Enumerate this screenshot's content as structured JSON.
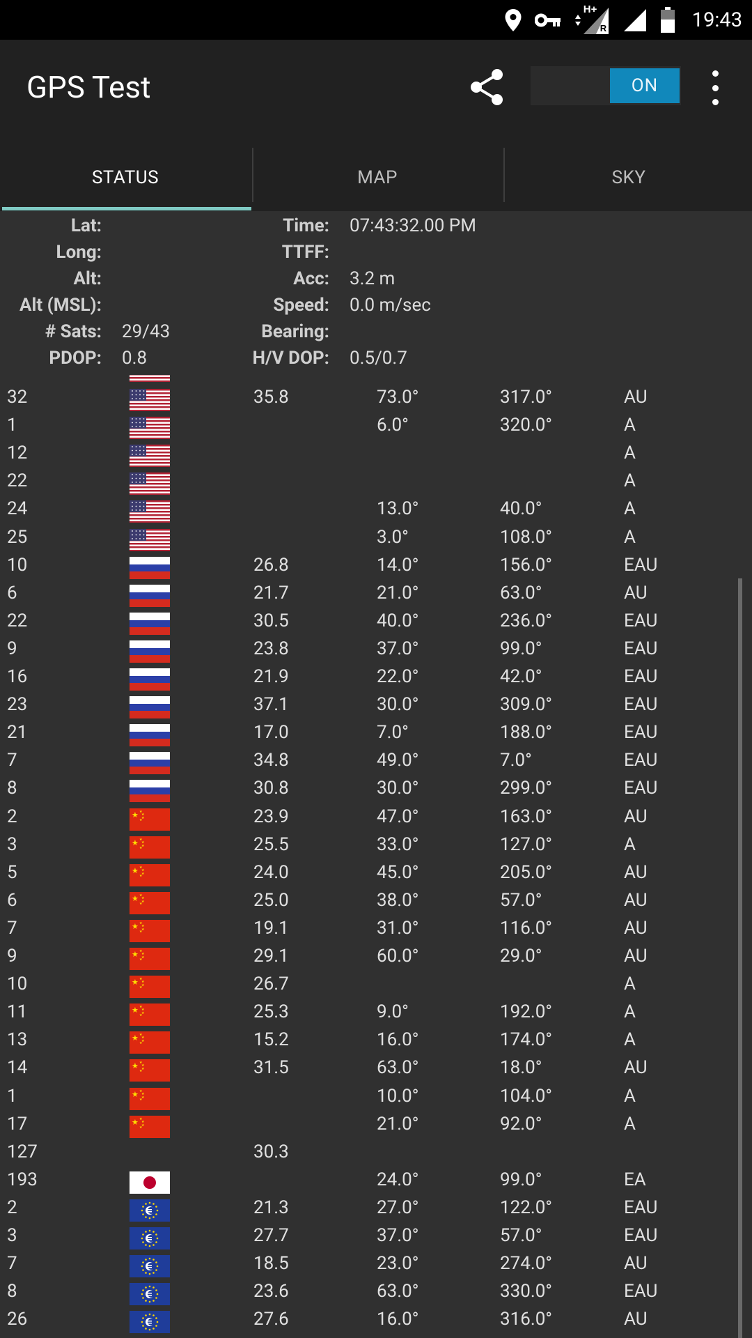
{
  "status_bar": {
    "time": "19:43",
    "network": "H+",
    "roaming": "R"
  },
  "app": {
    "title": "GPS Test",
    "toggle_label": "ON"
  },
  "tabs": [
    {
      "label": "STATUS",
      "active": true
    },
    {
      "label": "MAP",
      "active": false
    },
    {
      "label": "SKY",
      "active": false
    }
  ],
  "info": {
    "lat": {
      "label": "Lat:",
      "value": ""
    },
    "long": {
      "label": "Long:",
      "value": ""
    },
    "alt": {
      "label": "Alt:",
      "value": ""
    },
    "alt_msl": {
      "label": "Alt (MSL):",
      "value": ""
    },
    "sats": {
      "label": "# Sats:",
      "value": "29/43"
    },
    "pdop": {
      "label": "PDOP:",
      "value": "0.8"
    },
    "time": {
      "label": "Time:",
      "value": "07:43:32.00 PM"
    },
    "ttff": {
      "label": "TTFF:",
      "value": ""
    },
    "acc": {
      "label": "Acc:",
      "value": "3.2 m"
    },
    "speed": {
      "label": "Speed:",
      "value": "0.0 m/sec"
    },
    "bearing": {
      "label": "Bearing:",
      "value": ""
    },
    "hv_dop": {
      "label": "H/V DOP:",
      "value": "0.5/0.7"
    }
  },
  "satellites": [
    {
      "id": "32",
      "flag": "us",
      "cn0": "35.8",
      "elev": "73.0°",
      "azim": "317.0°",
      "flags": "AU"
    },
    {
      "id": "1",
      "flag": "us",
      "cn0": "",
      "elev": "6.0°",
      "azim": "320.0°",
      "flags": "A"
    },
    {
      "id": "12",
      "flag": "us",
      "cn0": "",
      "elev": "",
      "azim": "",
      "flags": "A"
    },
    {
      "id": "22",
      "flag": "us",
      "cn0": "",
      "elev": "",
      "azim": "",
      "flags": "A"
    },
    {
      "id": "24",
      "flag": "us",
      "cn0": "",
      "elev": "13.0°",
      "azim": "40.0°",
      "flags": "A"
    },
    {
      "id": "25",
      "flag": "us",
      "cn0": "",
      "elev": "3.0°",
      "azim": "108.0°",
      "flags": "A"
    },
    {
      "id": "10",
      "flag": "ru",
      "cn0": "26.8",
      "elev": "14.0°",
      "azim": "156.0°",
      "flags": "EAU"
    },
    {
      "id": "6",
      "flag": "ru",
      "cn0": "21.7",
      "elev": "21.0°",
      "azim": "63.0°",
      "flags": "AU"
    },
    {
      "id": "22",
      "flag": "ru",
      "cn0": "30.5",
      "elev": "40.0°",
      "azim": "236.0°",
      "flags": "EAU"
    },
    {
      "id": "9",
      "flag": "ru",
      "cn0": "23.8",
      "elev": "37.0°",
      "azim": "99.0°",
      "flags": "EAU"
    },
    {
      "id": "16",
      "flag": "ru",
      "cn0": "21.9",
      "elev": "22.0°",
      "azim": "42.0°",
      "flags": "EAU"
    },
    {
      "id": "23",
      "flag": "ru",
      "cn0": "37.1",
      "elev": "30.0°",
      "azim": "309.0°",
      "flags": "EAU"
    },
    {
      "id": "21",
      "flag": "ru",
      "cn0": "17.0",
      "elev": "7.0°",
      "azim": "188.0°",
      "flags": "EAU"
    },
    {
      "id": "7",
      "flag": "ru",
      "cn0": "34.8",
      "elev": "49.0°",
      "azim": "7.0°",
      "flags": "EAU"
    },
    {
      "id": "8",
      "flag": "ru",
      "cn0": "30.8",
      "elev": "30.0°",
      "azim": "299.0°",
      "flags": "EAU"
    },
    {
      "id": "2",
      "flag": "cn",
      "cn0": "23.9",
      "elev": "47.0°",
      "azim": "163.0°",
      "flags": "AU"
    },
    {
      "id": "3",
      "flag": "cn",
      "cn0": "25.5",
      "elev": "33.0°",
      "azim": "127.0°",
      "flags": "A"
    },
    {
      "id": "5",
      "flag": "cn",
      "cn0": "24.0",
      "elev": "45.0°",
      "azim": "205.0°",
      "flags": "AU"
    },
    {
      "id": "6",
      "flag": "cn",
      "cn0": "25.0",
      "elev": "38.0°",
      "azim": "57.0°",
      "flags": "AU"
    },
    {
      "id": "7",
      "flag": "cn",
      "cn0": "19.1",
      "elev": "31.0°",
      "azim": "116.0°",
      "flags": "AU"
    },
    {
      "id": "9",
      "flag": "cn",
      "cn0": "29.1",
      "elev": "60.0°",
      "azim": "29.0°",
      "flags": "AU"
    },
    {
      "id": "10",
      "flag": "cn",
      "cn0": "26.7",
      "elev": "",
      "azim": "",
      "flags": "A"
    },
    {
      "id": "11",
      "flag": "cn",
      "cn0": "25.3",
      "elev": "9.0°",
      "azim": "192.0°",
      "flags": "A"
    },
    {
      "id": "13",
      "flag": "cn",
      "cn0": "15.2",
      "elev": "16.0°",
      "azim": "174.0°",
      "flags": "A"
    },
    {
      "id": "14",
      "flag": "cn",
      "cn0": "31.5",
      "elev": "63.0°",
      "azim": "18.0°",
      "flags": "AU"
    },
    {
      "id": "1",
      "flag": "cn",
      "cn0": "",
      "elev": "10.0°",
      "azim": "104.0°",
      "flags": "A"
    },
    {
      "id": "17",
      "flag": "cn",
      "cn0": "",
      "elev": "21.0°",
      "azim": "92.0°",
      "flags": "A"
    },
    {
      "id": "127",
      "flag": "",
      "cn0": "30.3",
      "elev": "",
      "azim": "",
      "flags": ""
    },
    {
      "id": "193",
      "flag": "jp",
      "cn0": "",
      "elev": "24.0°",
      "azim": "99.0°",
      "flags": "EA"
    },
    {
      "id": "2",
      "flag": "eu",
      "cn0": "21.3",
      "elev": "27.0°",
      "azim": "122.0°",
      "flags": "EAU"
    },
    {
      "id": "3",
      "flag": "eu",
      "cn0": "27.7",
      "elev": "37.0°",
      "azim": "57.0°",
      "flags": "EAU"
    },
    {
      "id": "7",
      "flag": "eu",
      "cn0": "18.5",
      "elev": "23.0°",
      "azim": "274.0°",
      "flags": "AU"
    },
    {
      "id": "8",
      "flag": "eu",
      "cn0": "23.6",
      "elev": "63.0°",
      "azim": "330.0°",
      "flags": "EAU"
    },
    {
      "id": "26",
      "flag": "eu",
      "cn0": "27.6",
      "elev": "16.0°",
      "azim": "316.0°",
      "flags": "AU"
    }
  ]
}
